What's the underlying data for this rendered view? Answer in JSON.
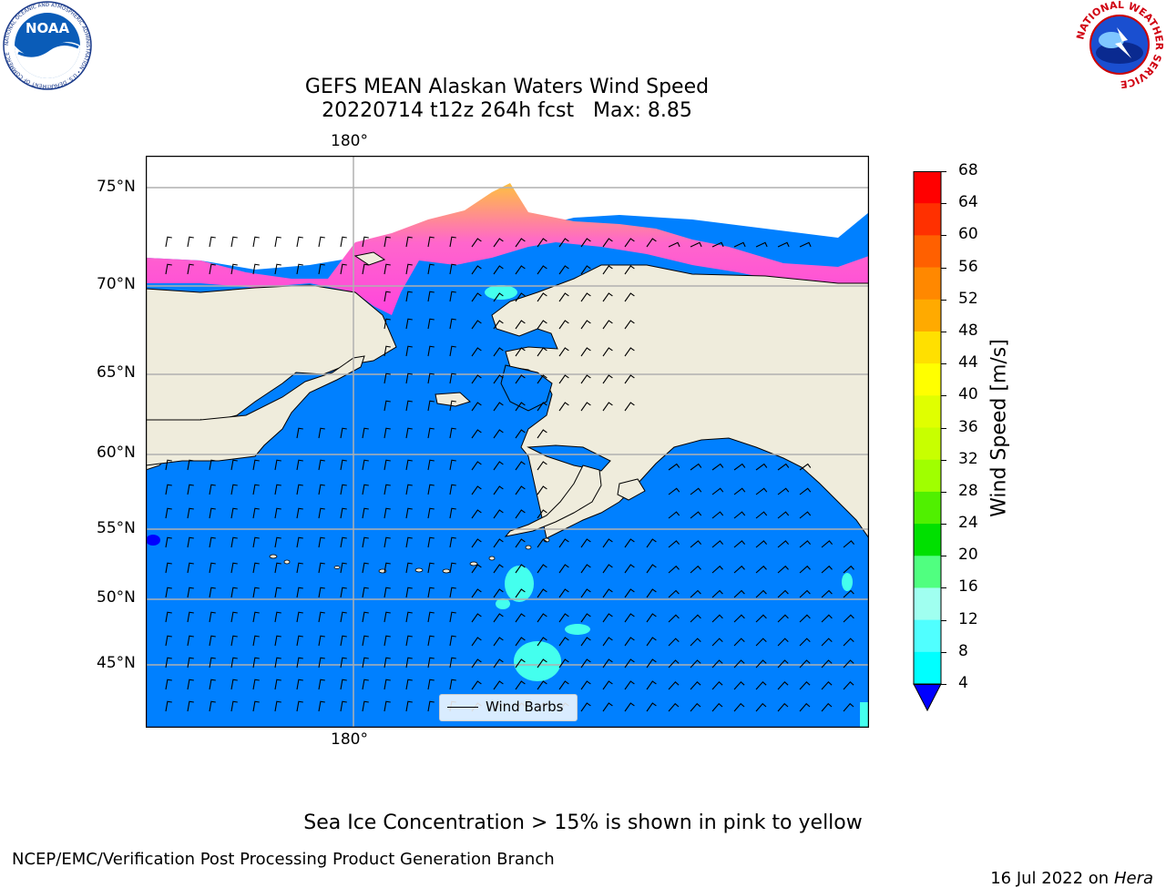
{
  "header": {
    "title_line1": "GEFS MEAN Alaskan Waters Wind Speed",
    "title_line2": "20220714 t12z 264h fcst   Max: 8.85"
  },
  "logos": {
    "noaa_text": "NOAA",
    "noaa_ring": "NATIONAL OCEANIC AND ATMOSPHERIC ADMINISTRATION • U.S. DEPARTMENT OF COMMERCE",
    "nws_ring": "NATIONAL WEATHER SERVICE"
  },
  "map": {
    "lon_label_top": "180°",
    "lon_label_bottom": "180°",
    "lat_labels": [
      "75°N",
      "70°N",
      "65°N",
      "60°N",
      "55°N",
      "50°N",
      "45°N"
    ],
    "legend_label": "Wind Barbs",
    "colors": {
      "ocean": "#0080ff",
      "land": "#efecdc",
      "ice_pink": "#ff44dd",
      "ice_yellow": "#ffc040",
      "cyan": "#44ffee"
    }
  },
  "colorbar": {
    "label": "Wind Speed [m/s]",
    "ticks": [
      "68",
      "64",
      "60",
      "56",
      "52",
      "48",
      "44",
      "40",
      "36",
      "32",
      "28",
      "24",
      "20",
      "16",
      "12",
      "8",
      "4"
    ],
    "colors": [
      "#ff0000",
      "#ff3000",
      "#ff6000",
      "#ff8800",
      "#ffaa00",
      "#ffe000",
      "#ffff00",
      "#e0ff00",
      "#c8ff00",
      "#a0ff00",
      "#50f000",
      "#00e000",
      "#50ff80",
      "#a0fff0",
      "#50ffff",
      "#00ffff",
      "#0080ff"
    ],
    "underflow_color": "#0000ff"
  },
  "footer": {
    "note": "Sea Ice Concentration > 15% is shown in pink to yellow",
    "credit": "NCEP/EMC/Verification Post Processing Product Generation Branch",
    "date": "16 Jul 2022 on ",
    "machine": "Hera"
  }
}
